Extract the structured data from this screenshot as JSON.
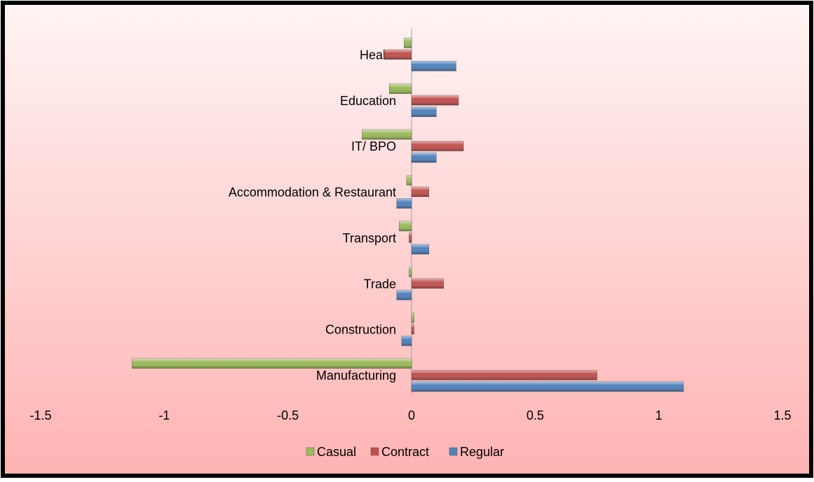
{
  "chart_data": {
    "type": "bar",
    "orientation": "horizontal",
    "categories": [
      "Manufacturing",
      "Construction",
      "Trade",
      "Transport",
      "Accommodation & Restaurant",
      "IT/ BPO",
      "Education",
      "Health"
    ],
    "series": [
      {
        "name": "Casual",
        "color": "#9bbb59",
        "values": [
          -1.13,
          0.01,
          -0.01,
          -0.05,
          -0.02,
          -0.2,
          -0.09,
          -0.03
        ]
      },
      {
        "name": "Contract",
        "color": "#c0504d",
        "values": [
          0.75,
          0.01,
          0.13,
          -0.01,
          0.07,
          0.21,
          0.19,
          -0.11
        ]
      },
      {
        "name": "Regular",
        "color": "#4f81bd",
        "values": [
          1.1,
          -0.04,
          -0.06,
          0.07,
          -0.06,
          0.1,
          0.1,
          0.18
        ]
      }
    ],
    "xlim": [
      -1.5,
      1.5
    ],
    "xticks": [
      -1.5,
      -1,
      -0.5,
      0,
      0.5,
      1,
      1.5
    ],
    "legend": "bottom",
    "grid": false
  }
}
